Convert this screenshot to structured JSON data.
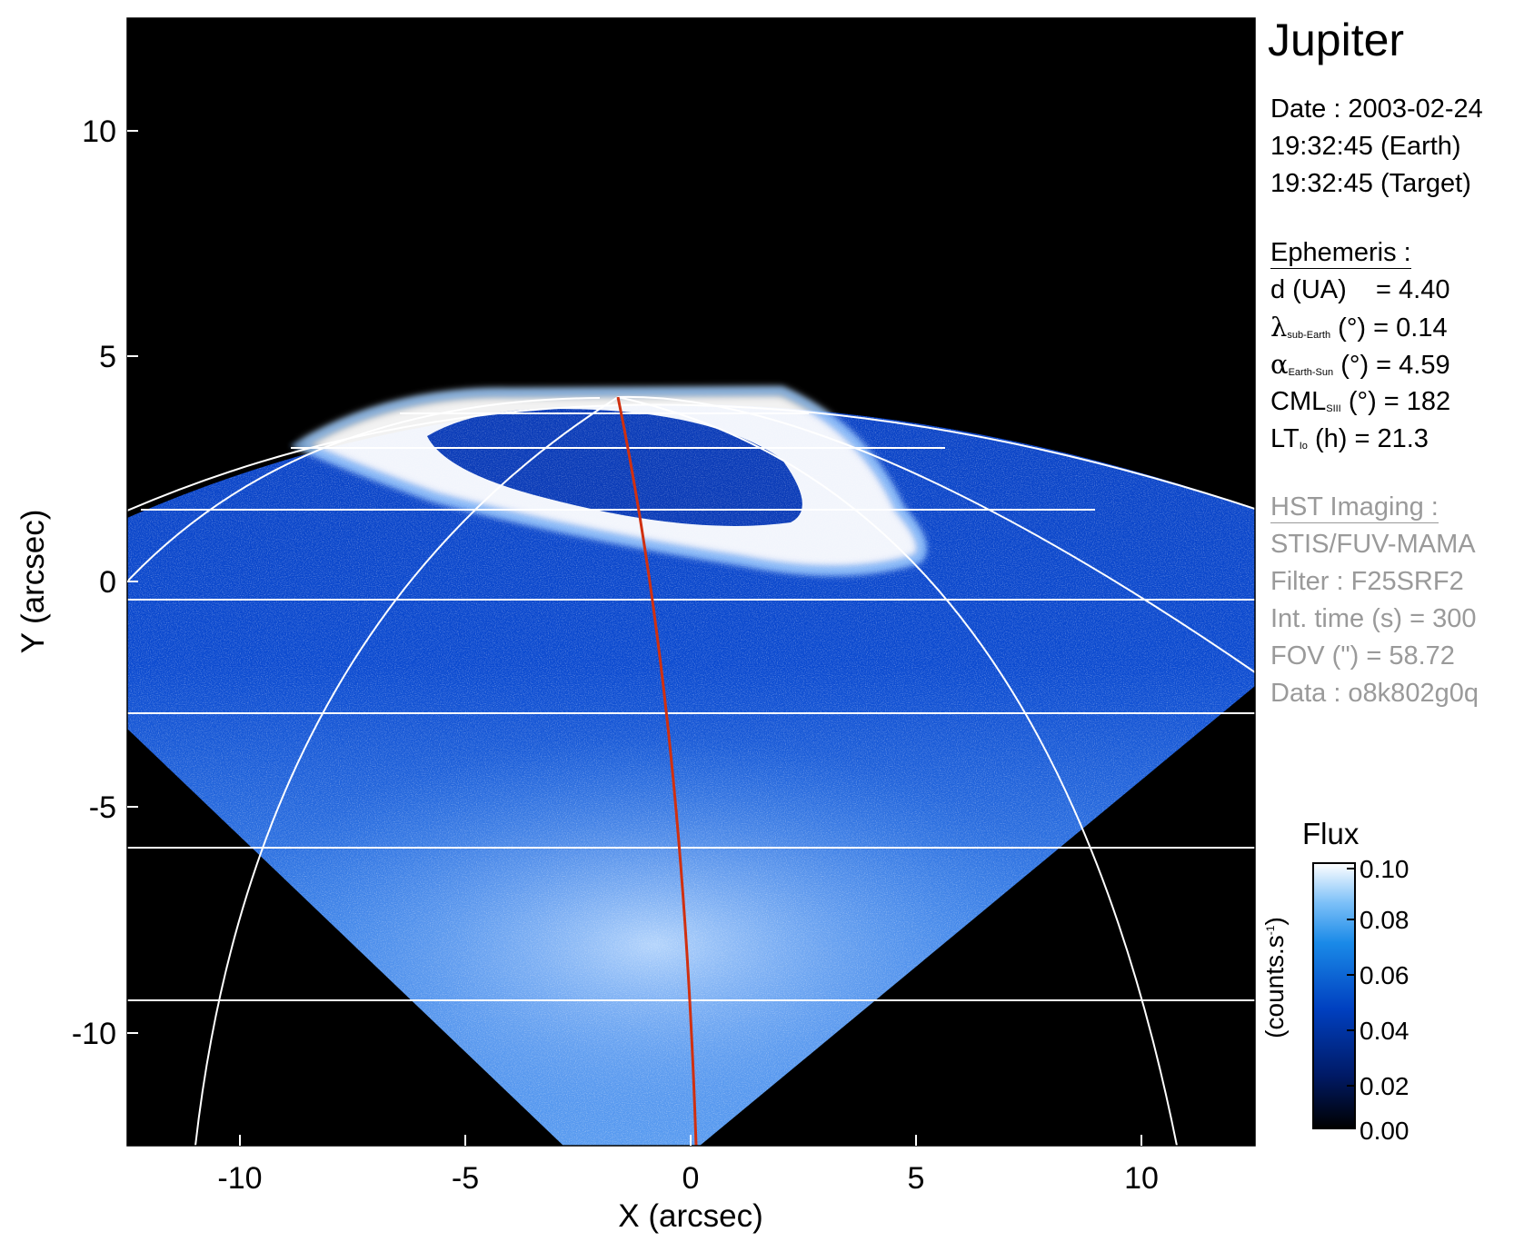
{
  "image": {
    "type": "image",
    "description_visible": "Jupiter north polar aurora, HST STIS FUV image",
    "x_label": "X (arcsec)",
    "y_label": "Y (arcsec)",
    "x_ticks": [
      "-10",
      "-5",
      "0",
      "5",
      "10"
    ],
    "y_ticks": [
      "10",
      "5",
      "0",
      "-5",
      "-10"
    ],
    "x_range": [
      -12.5,
      12.5
    ],
    "y_range": [
      -12.5,
      12.5
    ],
    "colors": {
      "background": "#000000",
      "plasma": "#0a4fd8",
      "aurora": "#ffffff",
      "grid": "#ffffff",
      "cml_line": "#d03010"
    }
  },
  "panel": {
    "title": "Jupiter",
    "date_line": "Date : 2003-02-24",
    "earth_time": "19:32:45 (Earth)",
    "target_time": "19:32:45 (Target)",
    "ephemeris_header": "Ephemeris :",
    "d_label": "d (UA)",
    "d_value": "= 4.40",
    "lambda_sym": "λ",
    "lambda_sub": "sub-Earth",
    "lambda_unit": "(°)",
    "lambda_value": "= 0.14",
    "alpha_sym": "α",
    "alpha_sub": "Earth-Sun",
    "alpha_unit": "(°)",
    "alpha_value": "= 4.59",
    "cml_label": "CML",
    "cml_sub": "SIII",
    "cml_unit": "(°)",
    "cml_value": "= 182",
    "lt_label": "LT",
    "lt_sub": "Io",
    "lt_unit": "(h)",
    "lt_value": "= 21.3",
    "hst_header": "HST Imaging :",
    "instrument": "STIS/FUV-MAMA",
    "filter": "Filter : F25SRF2",
    "int_time": "Int. time (s) = 300",
    "fov": "FOV (\") = 58.72",
    "data_id": "Data : o8k802g0q"
  },
  "colorbar": {
    "title": "Flux",
    "unit_text": "(counts.s",
    "unit_sup": "-1",
    "unit_close": ")",
    "ticks": [
      "0.10",
      "0.08",
      "0.06",
      "0.04",
      "0.02",
      "0.00"
    ],
    "tick_values": [
      0.1,
      0.08,
      0.06,
      0.04,
      0.02,
      0.0
    ]
  }
}
